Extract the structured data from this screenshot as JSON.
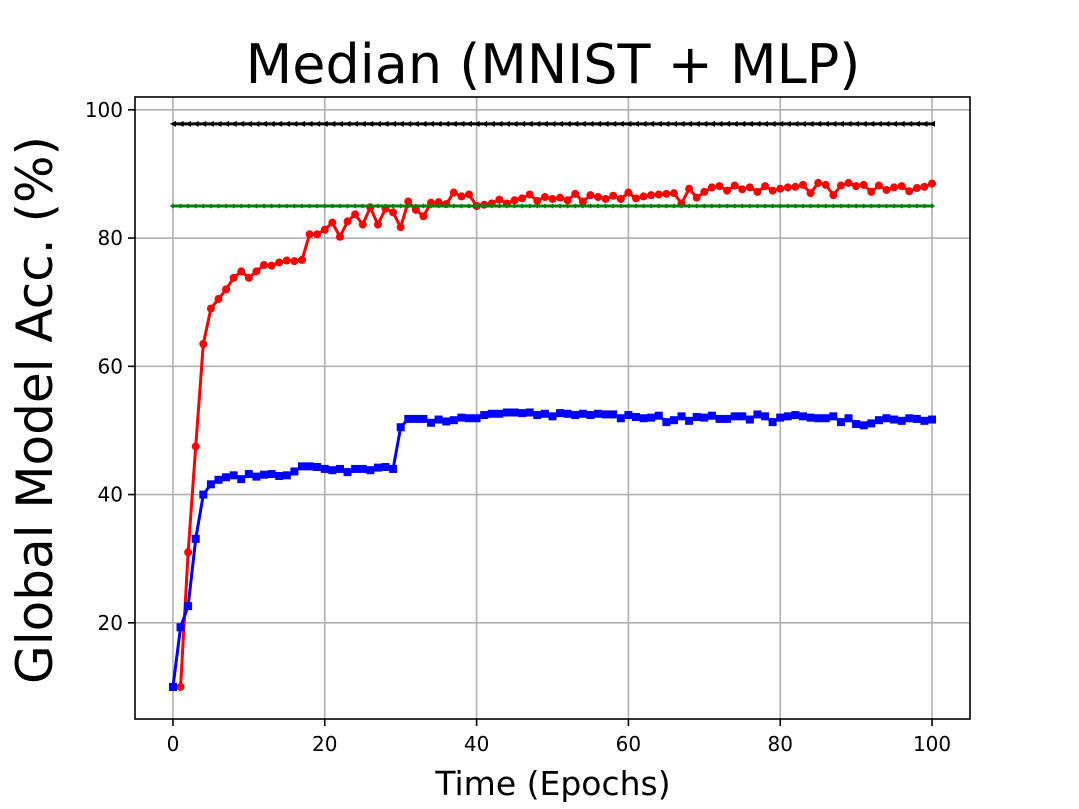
{
  "chart_data": {
    "type": "line",
    "title": "Median (MNIST + MLP)",
    "xlabel": "Time (Epochs)",
    "ylabel": "Global Model Acc. (%)",
    "xlim": [
      -5,
      105
    ],
    "ylim": [
      5,
      102
    ],
    "xticks": [
      0,
      20,
      40,
      60,
      80,
      100
    ],
    "yticks": [
      20,
      40,
      60,
      80,
      100
    ],
    "grid": true,
    "x": [
      0,
      1,
      2,
      3,
      4,
      5,
      6,
      7,
      8,
      9,
      10,
      11,
      12,
      13,
      14,
      15,
      16,
      17,
      18,
      19,
      20,
      21,
      22,
      23,
      24,
      25,
      26,
      27,
      28,
      29,
      30,
      31,
      32,
      33,
      34,
      35,
      36,
      37,
      38,
      39,
      40,
      41,
      42,
      43,
      44,
      45,
      46,
      47,
      48,
      49,
      50,
      51,
      52,
      53,
      54,
      55,
      56,
      57,
      58,
      59,
      60,
      61,
      62,
      63,
      64,
      65,
      66,
      67,
      68,
      69,
      70,
      71,
      72,
      73,
      74,
      75,
      76,
      77,
      78,
      79,
      80,
      81,
      82,
      83,
      84,
      85,
      86,
      87,
      88,
      89,
      90,
      91,
      92,
      93,
      94,
      95,
      96,
      97,
      98,
      99,
      100
    ],
    "series": [
      {
        "color": "#ff0000",
        "marker": "circle",
        "values": [
          10,
          10,
          31,
          47.5,
          63.5,
          69,
          70.5,
          72,
          73.8,
          74.8,
          73.8,
          74.8,
          75.8,
          75.7,
          76.2,
          76.5,
          76.4,
          76.6,
          80.6,
          80.6,
          81.3,
          82.4,
          80.2,
          82.6,
          83.7,
          82.1,
          84.8,
          82.1,
          84.6,
          84,
          81.7,
          85.7,
          84.4,
          83.4,
          85.5,
          85.6,
          85.3,
          87.1,
          86.5,
          86.8,
          85,
          85.2,
          85.4,
          86,
          85.4,
          85.9,
          86.2,
          86.8,
          85.8,
          86.4,
          86.1,
          86.3,
          85.9,
          86.9,
          85.7,
          86.7,
          86.4,
          86.1,
          86.6,
          86.1,
          87.1,
          86.2,
          86.5,
          86.7,
          86.8,
          86.9,
          87,
          85.4,
          87.7,
          86.3,
          87.2,
          87.9,
          88.1,
          87.4,
          88.2,
          87.6,
          87.9,
          87.2,
          88.1,
          87.4,
          87.7,
          87.9,
          88,
          88.3,
          87,
          88.6,
          88.3,
          86.7,
          88.2,
          88.6,
          88.1,
          88.3,
          87.2,
          88.2,
          87.5,
          87.9,
          88.1,
          87.3,
          87.8,
          88,
          88.5
        ]
      },
      {
        "color": "#0000ff",
        "marker": "square",
        "values": [
          10,
          19.3,
          22.6,
          33.1,
          40,
          41.6,
          42.3,
          42.7,
          43,
          42.4,
          43.2,
          42.8,
          43.1,
          43.2,
          42.9,
          43,
          43.6,
          44.4,
          44.4,
          44.3,
          44,
          43.8,
          44,
          43.5,
          44,
          44,
          43.8,
          44.2,
          44.3,
          44,
          50.5,
          51.8,
          51.8,
          51.8,
          51.2,
          51.7,
          51.4,
          51.6,
          52,
          51.9,
          51.9,
          52.4,
          52.6,
          52.6,
          52.8,
          52.8,
          52.7,
          52.8,
          52.4,
          52.6,
          52.2,
          52.7,
          52.6,
          52.4,
          52.6,
          52.4,
          52.6,
          52.5,
          52.5,
          51.9,
          52.4,
          52.1,
          51.9,
          52,
          52.3,
          51.3,
          51.6,
          52.2,
          51.5,
          52.1,
          52,
          52.3,
          51.8,
          51.8,
          52.2,
          52.2,
          51.7,
          52.5,
          52.2,
          51.3,
          52,
          52.2,
          52.4,
          52.2,
          52,
          51.9,
          51.9,
          52.2,
          51.3,
          51.9,
          51,
          50.8,
          51.1,
          51.6,
          51.9,
          51.7,
          51.5,
          51.9,
          51.8,
          51.5,
          51.7
        ]
      },
      {
        "color": "#008000",
        "marker": "diamond",
        "values": [
          85,
          85,
          85,
          85,
          85,
          85,
          85,
          85,
          85,
          85,
          85,
          85,
          85,
          85,
          85,
          85,
          85,
          85,
          85,
          85,
          85,
          85,
          85,
          85,
          85,
          85,
          85,
          85,
          85,
          85,
          85,
          85,
          85,
          85,
          85,
          85,
          85,
          85,
          85,
          85,
          85,
          85,
          85,
          85,
          85,
          85,
          85,
          85,
          85,
          85,
          85,
          85,
          85,
          85,
          85,
          85,
          85,
          85,
          85,
          85,
          85,
          85,
          85,
          85,
          85,
          85,
          85,
          85,
          85,
          85,
          85,
          85,
          85,
          85,
          85,
          85,
          85,
          85,
          85,
          85,
          85,
          85,
          85,
          85,
          85,
          85,
          85,
          85,
          85,
          85,
          85,
          85,
          85,
          85,
          85,
          85,
          85,
          85,
          85,
          85,
          85
        ]
      },
      {
        "color": "#000000",
        "marker": "triangle-left",
        "values": [
          97.8,
          97.8,
          97.8,
          97.8,
          97.8,
          97.8,
          97.8,
          97.8,
          97.8,
          97.8,
          97.8,
          97.8,
          97.8,
          97.8,
          97.8,
          97.8,
          97.8,
          97.8,
          97.8,
          97.8,
          97.8,
          97.8,
          97.8,
          97.8,
          97.8,
          97.8,
          97.8,
          97.8,
          97.8,
          97.8,
          97.8,
          97.8,
          97.8,
          97.8,
          97.8,
          97.8,
          97.8,
          97.8,
          97.8,
          97.8,
          97.8,
          97.8,
          97.8,
          97.8,
          97.8,
          97.8,
          97.8,
          97.8,
          97.8,
          97.8,
          97.8,
          97.8,
          97.8,
          97.8,
          97.8,
          97.8,
          97.8,
          97.8,
          97.8,
          97.8,
          97.8,
          97.8,
          97.8,
          97.8,
          97.8,
          97.8,
          97.8,
          97.8,
          97.8,
          97.8,
          97.8,
          97.8,
          97.8,
          97.8,
          97.8,
          97.8,
          97.8,
          97.8,
          97.8,
          97.8,
          97.8,
          97.8,
          97.8,
          97.8,
          97.8,
          97.8,
          97.8,
          97.8,
          97.8,
          97.8,
          97.8,
          97.8,
          97.8,
          97.8,
          97.8,
          97.8,
          97.8,
          97.8,
          97.8,
          97.8,
          97.8
        ]
      }
    ]
  }
}
